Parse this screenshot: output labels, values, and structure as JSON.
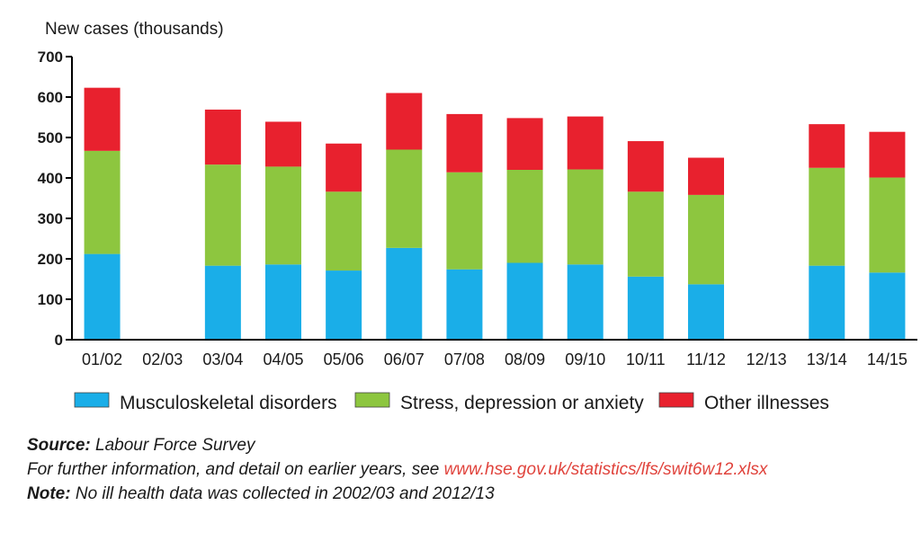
{
  "chart_data": {
    "type": "bar",
    "stacked": true,
    "ylabel": "New cases (thousands)",
    "ylim": [
      0,
      700
    ],
    "yticks": [
      0,
      100,
      200,
      300,
      400,
      500,
      600,
      700
    ],
    "categories": [
      "01/02",
      "02/03",
      "03/04",
      "04/05",
      "05/06",
      "06/07",
      "07/08",
      "08/09",
      "09/10",
      "10/11",
      "11/12",
      "12/13",
      "13/14",
      "14/15"
    ],
    "series": [
      {
        "name": "Musculoskeletal disorders",
        "color": "#1aaee8",
        "values": [
          212,
          null,
          183,
          186,
          171,
          227,
          174,
          190,
          186,
          156,
          137,
          null,
          183,
          166
        ]
      },
      {
        "name": "Stress, depression or anxiety",
        "color": "#8dc63f",
        "values": [
          255,
          null,
          250,
          242,
          195,
          243,
          240,
          230,
          235,
          210,
          221,
          null,
          242,
          235
        ]
      },
      {
        "name": "Other illnesses",
        "color": "#e8212e",
        "values": [
          156,
          null,
          136,
          111,
          119,
          140,
          144,
          128,
          131,
          125,
          92,
          null,
          108,
          113
        ]
      }
    ],
    "legend_position": "bottom",
    "grid": false
  },
  "footer": {
    "source_label": "Source:",
    "source_text": " Labour Force Survey",
    "info_text": "For further information, and detail on earlier years, see ",
    "info_link": "www.hse.gov.uk/statistics/lfs/swit6w12.xlsx",
    "note_label": "Note:",
    "note_text": " No ill health data was collected in 2002/03 and 2012/13"
  }
}
